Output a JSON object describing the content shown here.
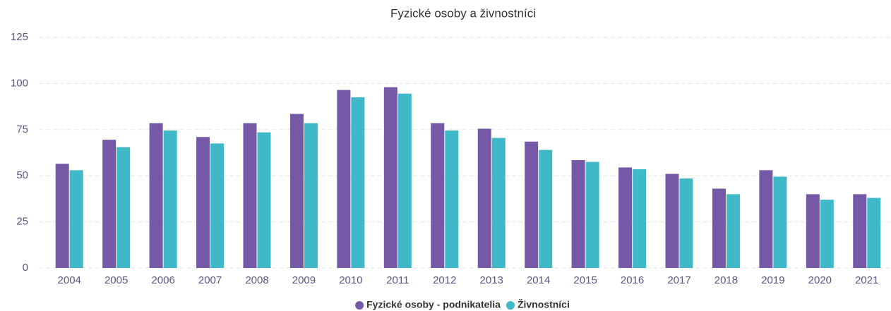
{
  "chart_data": {
    "type": "bar",
    "title": "Fyzické osoby a živnostníci",
    "categories": [
      "2004",
      "2005",
      "2006",
      "2007",
      "2008",
      "2009",
      "2010",
      "2011",
      "2012",
      "2013",
      "2014",
      "2015",
      "2016",
      "2017",
      "2018",
      "2019",
      "2020",
      "2021"
    ],
    "series": [
      {
        "name": "Fyzické osoby - podnikatelia",
        "color": "#7559a6",
        "values": [
          56.5,
          69.5,
          78.5,
          71,
          78.5,
          83.5,
          96.5,
          98,
          78.5,
          75.5,
          68.5,
          58.5,
          54.5,
          51,
          43,
          53,
          40,
          40
        ]
      },
      {
        "name": "Živnostníci",
        "color": "#3fb8c8",
        "values": [
          53,
          65.5,
          74.5,
          67.5,
          73.5,
          78.5,
          92.5,
          94.5,
          74.5,
          70.5,
          64,
          57.5,
          53.5,
          48.5,
          40,
          49.5,
          37,
          38
        ]
      }
    ],
    "ylim": [
      0,
      125
    ],
    "yticks": [
      0,
      25,
      50,
      75,
      100,
      125
    ],
    "grid": true,
    "legend": "bottom"
  }
}
